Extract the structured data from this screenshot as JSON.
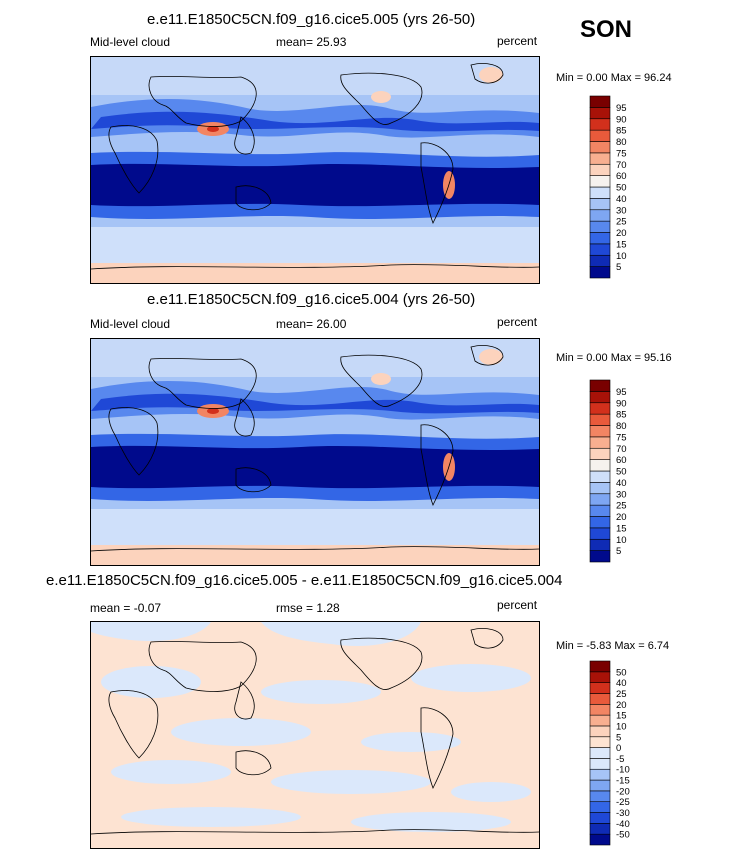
{
  "season": "SON",
  "panels": [
    {
      "title": "e.e11.E1850C5CN.f09_g16.cice5.005 (yrs 26-50)",
      "left_label": "Mid-level cloud",
      "center_label": "mean=  25.93",
      "right_label": "percent",
      "minmax": "Min =   0.00 Max =  96.24"
    },
    {
      "title": "e.e11.E1850C5CN.f09_g16.cice5.004 (yrs 26-50)",
      "left_label": "Mid-level cloud",
      "center_label": "mean=  26.00",
      "right_label": "percent",
      "minmax": "Min =   0.00 Max =  95.16"
    },
    {
      "title": "e.e11.E1850C5CN.f09_g16.cice5.005 - e.e11.E1850C5CN.f09_g16.cice5.004",
      "left_label": "mean =  -0.07",
      "center_label": "rmse =   1.28",
      "right_label": "percent",
      "minmax": "Min =  -5.83 Max =   6.74"
    }
  ],
  "chart_data": [
    {
      "type": "heatmap",
      "title": "e.e11.E1850C5CN.f09_g16.cice5.005 (yrs 26-50)",
      "variable": "Mid-level cloud",
      "units": "percent",
      "mean": 25.93,
      "min": 0.0,
      "max": 96.24,
      "colorbar": {
        "levels": [
          "5",
          "10",
          "15",
          "20",
          "25",
          "30",
          "40",
          "50",
          "60",
          "70",
          "75",
          "80",
          "85",
          "90",
          "95"
        ],
        "colors": [
          "#000a8c",
          "#0f2bb5",
          "#1f48d6",
          "#3366e6",
          "#5888ee",
          "#7ea6f2",
          "#a6c4f6",
          "#cfe0fa",
          "#f6f2ee",
          "#fcd3bd",
          "#f8af90",
          "#f28563",
          "#e85a3b",
          "#d2301c",
          "#a81208",
          "#790000"
        ]
      }
    },
    {
      "type": "heatmap",
      "title": "e.e11.E1850C5CN.f09_g16.cice5.004 (yrs 26-50)",
      "variable": "Mid-level cloud",
      "units": "percent",
      "mean": 26.0,
      "min": 0.0,
      "max": 95.16,
      "colorbar": {
        "levels": [
          "5",
          "10",
          "15",
          "20",
          "25",
          "30",
          "40",
          "50",
          "60",
          "70",
          "75",
          "80",
          "85",
          "90",
          "95"
        ],
        "colors": [
          "#000a8c",
          "#0f2bb5",
          "#1f48d6",
          "#3366e6",
          "#5888ee",
          "#7ea6f2",
          "#a6c4f6",
          "#cfe0fa",
          "#f6f2ee",
          "#fcd3bd",
          "#f8af90",
          "#f28563",
          "#e85a3b",
          "#d2301c",
          "#a81208",
          "#790000"
        ]
      }
    },
    {
      "type": "heatmap",
      "title": "e.e11.E1850C5CN.f09_g16.cice5.005 - e.e11.E1850C5CN.f09_g16.cice5.004",
      "units": "percent",
      "mean": -0.07,
      "rmse": 1.28,
      "min": -5.83,
      "max": 6.74,
      "colorbar": {
        "levels": [
          "-50",
          "-40",
          "-30",
          "-25",
          "-20",
          "-15",
          "-10",
          "-5",
          "0",
          "5",
          "10",
          "15",
          "20",
          "25",
          "40",
          "50"
        ],
        "colors": [
          "#000a8c",
          "#0f2bb5",
          "#1f48d6",
          "#3366e6",
          "#5888ee",
          "#7ea6f2",
          "#a6c4f6",
          "#dbe8fb",
          "#dbe8fb",
          "#fde3d2",
          "#fcd3bd",
          "#f8af90",
          "#f28563",
          "#e85a3b",
          "#d2301c",
          "#a81208",
          "#790000"
        ]
      }
    }
  ]
}
